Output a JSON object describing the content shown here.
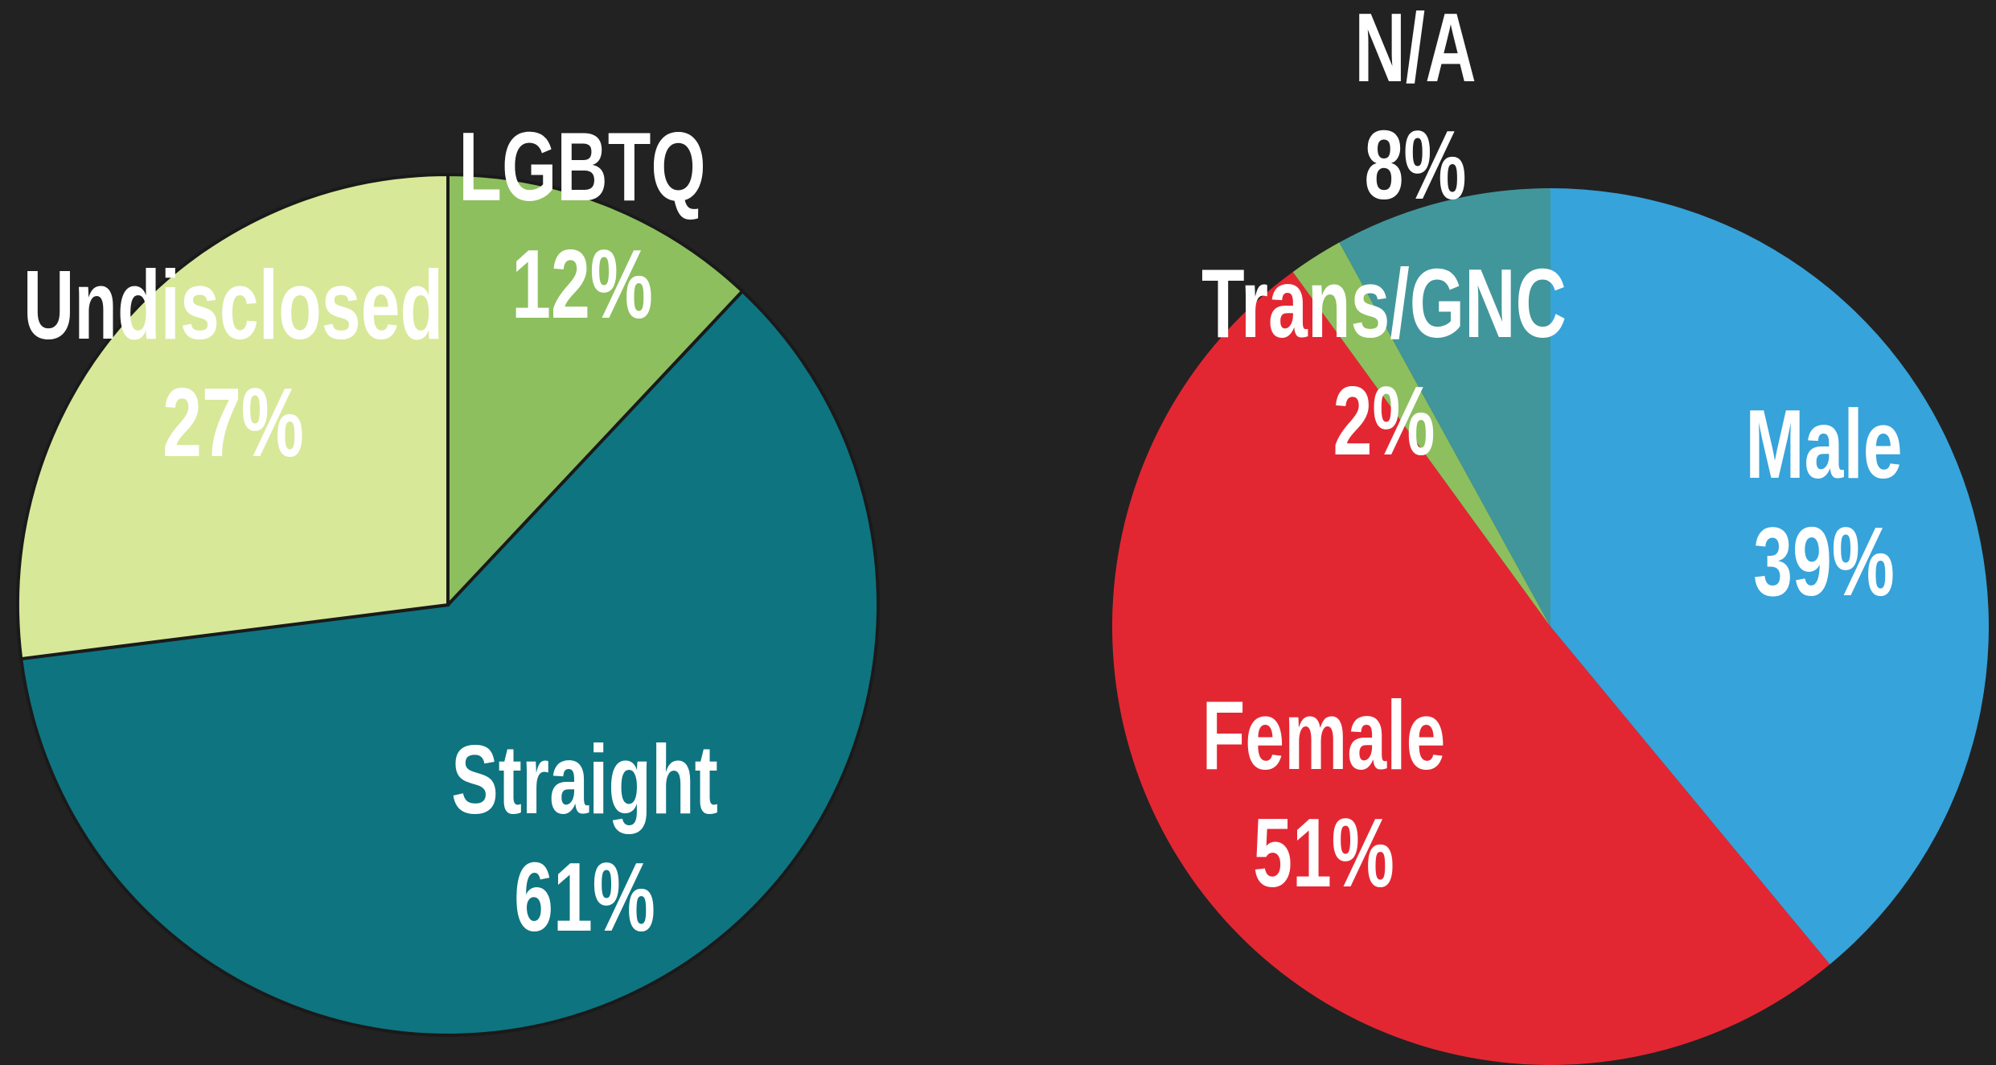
{
  "chart_data": [
    {
      "type": "pie",
      "categories": [
        "LGBTQ",
        "Straight",
        "Undisclosed"
      ],
      "values": [
        12,
        61,
        27
      ],
      "value_labels": [
        "12%",
        "61%",
        "27%"
      ],
      "colors": [
        "#8dbf5e",
        "#0e7480",
        "#d7e898"
      ]
    },
    {
      "type": "pie",
      "categories": [
        "Male",
        "Female",
        "Trans/GNC",
        "N/A"
      ],
      "values": [
        39,
        51,
        2,
        8
      ],
      "value_labels": [
        "39%",
        "51%",
        "2%",
        "8%"
      ],
      "colors": [
        "#36a3da",
        "#e32732",
        "#8dbf5e",
        "#41969b"
      ]
    }
  ]
}
